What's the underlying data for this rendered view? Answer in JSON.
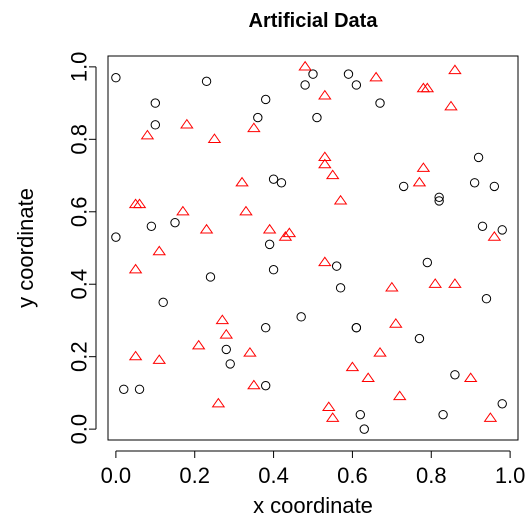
{
  "chart_data": {
    "type": "scatter",
    "title": "Artificial Data",
    "xlabel": "x coordinate",
    "ylabel": "y coordinate",
    "xlim": [
      -0.02,
      1.02
    ],
    "ylim": [
      -0.03,
      1.03
    ],
    "x_ticks": [
      0.0,
      0.2,
      0.4,
      0.6,
      0.8,
      1.0
    ],
    "x_tick_labels": [
      "0.0",
      "0.2",
      "0.4",
      "0.6",
      "0.8",
      "1.0"
    ],
    "y_ticks": [
      0.0,
      0.2,
      0.4,
      0.6,
      0.8,
      1.0
    ],
    "y_tick_labels": [
      "0.0",
      "0.2",
      "0.4",
      "0.6",
      "0.8",
      "1.0"
    ],
    "grid": false,
    "series": [
      {
        "marker": "circle",
        "color": "#000000",
        "points": [
          [
            0.0,
            0.97
          ],
          [
            0.1,
            0.9
          ],
          [
            0.1,
            0.84
          ],
          [
            0.23,
            0.96
          ],
          [
            0.38,
            0.91
          ],
          [
            0.36,
            0.86
          ],
          [
            0.48,
            0.95
          ],
          [
            0.5,
            0.98
          ],
          [
            0.51,
            0.86
          ],
          [
            0.59,
            0.98
          ],
          [
            0.61,
            0.95
          ],
          [
            0.67,
            0.9
          ],
          [
            0.09,
            0.56
          ],
          [
            0.15,
            0.57
          ],
          [
            0.12,
            0.35
          ],
          [
            0.0,
            0.53
          ],
          [
            0.24,
            0.42
          ],
          [
            0.4,
            0.69
          ],
          [
            0.42,
            0.68
          ],
          [
            0.39,
            0.51
          ],
          [
            0.4,
            0.44
          ],
          [
            0.47,
            0.31
          ],
          [
            0.56,
            0.45
          ],
          [
            0.57,
            0.39
          ],
          [
            0.38,
            0.28
          ],
          [
            0.28,
            0.22
          ],
          [
            0.29,
            0.18
          ],
          [
            0.38,
            0.12
          ],
          [
            0.61,
            0.28
          ],
          [
            0.61,
            0.28
          ],
          [
            0.62,
            0.04
          ],
          [
            0.63,
            0.0
          ],
          [
            0.73,
            0.67
          ],
          [
            0.82,
            0.63
          ],
          [
            0.82,
            0.64
          ],
          [
            0.79,
            0.46
          ],
          [
            0.77,
            0.25
          ],
          [
            0.83,
            0.04
          ],
          [
            0.86,
            0.15
          ],
          [
            0.91,
            0.68
          ],
          [
            0.92,
            0.75
          ],
          [
            0.93,
            0.56
          ],
          [
            0.96,
            0.67
          ],
          [
            0.98,
            0.55
          ],
          [
            0.94,
            0.36
          ],
          [
            0.98,
            0.07
          ],
          [
            0.02,
            0.11
          ],
          [
            0.06,
            0.11
          ]
        ]
      },
      {
        "marker": "triangle",
        "color": "#ff0000",
        "points": [
          [
            0.08,
            0.81
          ],
          [
            0.18,
            0.84
          ],
          [
            0.25,
            0.8
          ],
          [
            0.35,
            0.83
          ],
          [
            0.48,
            1.0
          ],
          [
            0.53,
            0.92
          ],
          [
            0.66,
            0.97
          ],
          [
            0.78,
            0.94
          ],
          [
            0.79,
            0.94
          ],
          [
            0.85,
            0.89
          ],
          [
            0.86,
            0.99
          ],
          [
            0.05,
            0.62
          ],
          [
            0.06,
            0.62
          ],
          [
            0.17,
            0.6
          ],
          [
            0.23,
            0.55
          ],
          [
            0.32,
            0.68
          ],
          [
            0.33,
            0.6
          ],
          [
            0.39,
            0.55
          ],
          [
            0.43,
            0.53
          ],
          [
            0.44,
            0.54
          ],
          [
            0.53,
            0.75
          ],
          [
            0.53,
            0.73
          ],
          [
            0.55,
            0.7
          ],
          [
            0.57,
            0.63
          ],
          [
            0.05,
            0.44
          ],
          [
            0.11,
            0.49
          ],
          [
            0.53,
            0.46
          ],
          [
            0.7,
            0.39
          ],
          [
            0.77,
            0.68
          ],
          [
            0.78,
            0.72
          ],
          [
            0.81,
            0.4
          ],
          [
            0.86,
            0.4
          ],
          [
            0.96,
            0.53
          ],
          [
            0.05,
            0.2
          ],
          [
            0.11,
            0.19
          ],
          [
            0.21,
            0.23
          ],
          [
            0.27,
            0.3
          ],
          [
            0.28,
            0.26
          ],
          [
            0.26,
            0.07
          ],
          [
            0.34,
            0.21
          ],
          [
            0.35,
            0.12
          ],
          [
            0.54,
            0.06
          ],
          [
            0.55,
            0.03
          ],
          [
            0.6,
            0.17
          ],
          [
            0.64,
            0.14
          ],
          [
            0.67,
            0.21
          ],
          [
            0.71,
            0.29
          ],
          [
            0.72,
            0.09
          ],
          [
            0.9,
            0.14
          ],
          [
            0.95,
            0.03
          ]
        ]
      }
    ]
  }
}
